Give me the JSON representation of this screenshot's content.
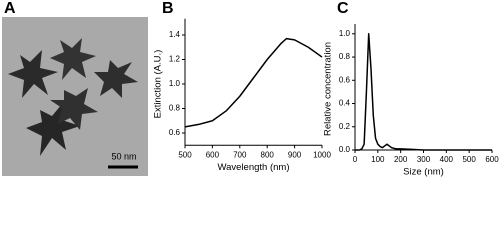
{
  "image_panel": {
    "label": "A",
    "scale_bar": "50 nm"
  },
  "chart_data": [
    {
      "type": "line",
      "panel_label": "B",
      "xlabel": "Wavelength (nm)",
      "ylabel": "Extinction (A.U.)",
      "x": [
        500,
        550,
        600,
        650,
        700,
        750,
        800,
        850,
        870,
        900,
        950,
        1000
      ],
      "series": [
        {
          "color": "#000000",
          "values": [
            0.65,
            0.67,
            0.7,
            0.78,
            0.9,
            1.05,
            1.2,
            1.33,
            1.37,
            1.36,
            1.3,
            1.22
          ]
        }
      ],
      "xlim": [
        500,
        1000
      ],
      "xticks": [
        500,
        600,
        700,
        800,
        900,
        1000
      ],
      "ylim": [
        0.5,
        1.5
      ],
      "yticks": [
        0.6,
        0.8,
        {
          "value": 1,
          "label": "1.0"
        },
        1.2,
        1.4
      ]
    },
    {
      "type": "line",
      "panel_label": "C",
      "xlabel": "Size (nm)",
      "ylabel": "Relative concentration",
      "x": [
        0,
        20,
        30,
        40,
        50,
        60,
        70,
        80,
        90,
        100,
        110,
        120,
        140,
        160,
        180,
        200,
        250,
        300,
        400,
        500,
        600
      ],
      "series": [
        {
          "color": "#000000",
          "values": [
            0,
            0,
            0.01,
            0.05,
            0.5,
            1.0,
            0.7,
            0.3,
            0.1,
            0.05,
            0.03,
            0.02,
            0.05,
            0.02,
            0.01,
            0.01,
            0.005,
            0,
            0,
            0,
            0
          ]
        }
      ],
      "xlim": [
        0,
        600
      ],
      "xticks": [
        0,
        100,
        200,
        300,
        400,
        500,
        600
      ],
      "ylim": [
        0,
        1.05
      ],
      "yticks": [
        {
          "value": 0,
          "label": "0.0"
        },
        0.2,
        0.4,
        0.6,
        0.8,
        {
          "value": 1,
          "label": "1.0"
        }
      ]
    }
  ]
}
